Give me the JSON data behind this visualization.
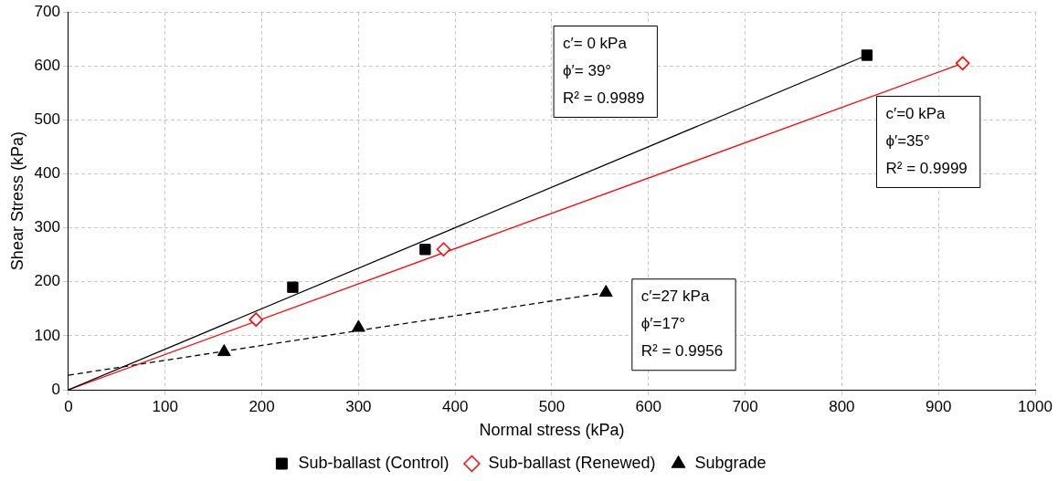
{
  "chart_data": {
    "type": "scatter",
    "xlabel": "Normal stress (kPa)",
    "ylabel": "Shear Stress (kPa)",
    "xlim": [
      0,
      1000
    ],
    "xticks": [
      0,
      100,
      200,
      300,
      400,
      500,
      600,
      700,
      800,
      900,
      1000
    ],
    "ylim": [
      0,
      700
    ],
    "yticks": [
      0,
      100,
      200,
      300,
      400,
      500,
      600,
      700
    ],
    "grid": true,
    "legend": "bottom",
    "series": [
      {
        "name": "Sub-ballast (Control)",
        "color": "#000000",
        "marker": "square",
        "x": [
          232,
          369,
          826
        ],
        "values": [
          190,
          260,
          620
        ]
      },
      {
        "name": "Sub-ballast (Renewed)",
        "color": "#ff0000",
        "marker": "diamond",
        "x": [
          194,
          388,
          925
        ],
        "values": [
          130,
          260,
          605
        ]
      },
      {
        "name": "Subgrade",
        "color": "#000000",
        "marker": "triangle",
        "x": [
          161,
          300,
          556
        ],
        "values": [
          70,
          115,
          180
        ]
      },
      {
        "type": "line",
        "color": "#000000",
        "marker": "none",
        "line_style": "solid",
        "x": [
          0,
          826
        ],
        "values": [
          0,
          620
        ]
      },
      {
        "type": "line",
        "color": "#ff0000",
        "marker": "none",
        "line_style": "solid",
        "x": [
          0,
          925
        ],
        "values": [
          0,
          605
        ]
      },
      {
        "type": "line",
        "color": "#000000",
        "marker": "none",
        "line_style": "dashed",
        "x": [
          0,
          556
        ],
        "values": [
          27,
          180
        ]
      }
    ],
    "annotations": [
      "c′= 0 kPa\nϕ′= 39°\nR² = 0.9989",
      "c′=0 kPa\nϕ′=35°\nR² = 0.9999",
      "c′=27 kPa\nϕ′=17°\nR² = 0.9956"
    ]
  }
}
